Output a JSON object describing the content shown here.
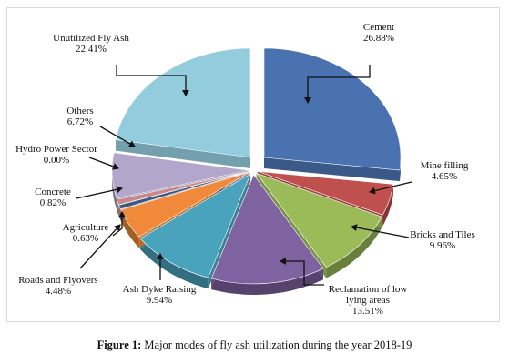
{
  "chart_data": {
    "type": "pie",
    "style": "3d-exploded",
    "slices": [
      {
        "label": "Cement",
        "value": 26.88,
        "value_label": "26.88%",
        "color": "#4a72b0"
      },
      {
        "label": "Mine filling",
        "value": 4.65,
        "value_label": "4.65%",
        "color": "#c0504d"
      },
      {
        "label": "Bricks and Tiles",
        "value": 9.96,
        "value_label": "9.96%",
        "color": "#9bbb59"
      },
      {
        "label": "Reclamation of low lying areas",
        "label_lines": [
          "Reclamation of low",
          "lying areas"
        ],
        "value": 13.51,
        "value_label": "13.51%",
        "color": "#7f62a0"
      },
      {
        "label": "Ash Dyke Raising",
        "value": 9.94,
        "value_label": "9.94%",
        "color": "#4aa3bd"
      },
      {
        "label": "Roads and Flyovers",
        "value": 4.48,
        "value_label": "4.48%",
        "color": "#f08a3a"
      },
      {
        "label": "Agriculture",
        "value": 0.63,
        "value_label": "0.63%",
        "color": "#3d5a85"
      },
      {
        "label": "Concrete",
        "value": 0.82,
        "value_label": "0.82%",
        "color": "#c9888a"
      },
      {
        "label": "Hydro Power Sector",
        "value": 0.0,
        "value_label": "0.00%",
        "color": "#b7c98a"
      },
      {
        "label": "Others",
        "value": 6.72,
        "value_label": "6.72%",
        "color": "#b3a6cc"
      },
      {
        "label": "Unutilized Fly Ash",
        "value": 22.41,
        "value_label": "22.41%",
        "color": "#93cddd"
      }
    ],
    "legend": "none"
  },
  "caption": {
    "prefix": "Figure 1:",
    "text": " Major modes of fly ash utilization during the year 2018-19"
  }
}
